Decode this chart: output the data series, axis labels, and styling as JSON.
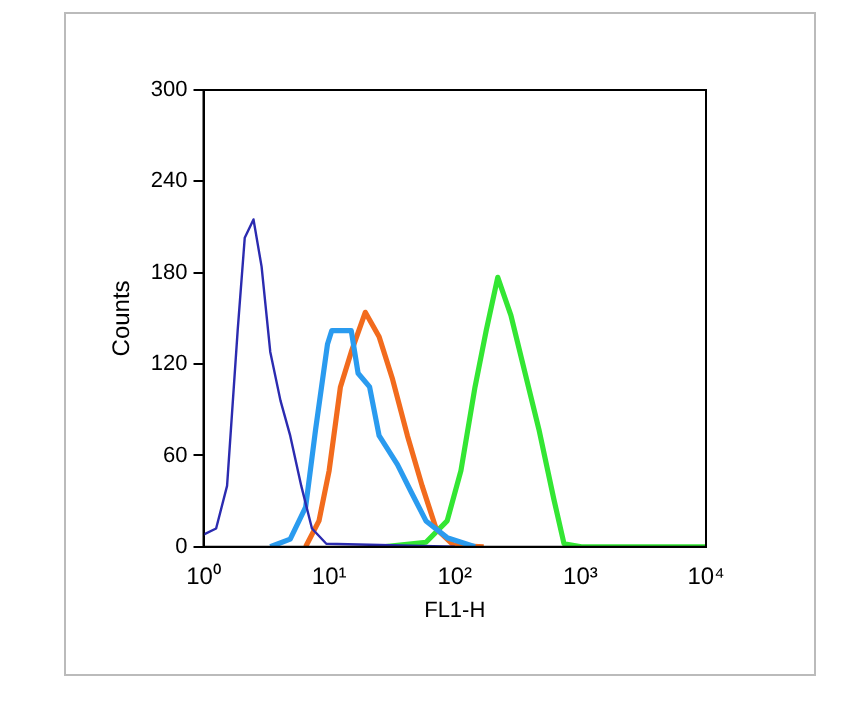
{
  "chart_data": {
    "type": "line",
    "xlabel": "FL1-H",
    "ylabel": "Counts",
    "log": "x",
    "grid": false,
    "legend": false,
    "marker": "none",
    "line_style": "solid",
    "xlim": [
      1,
      10000
    ],
    "xticks": [
      {
        "value": 1,
        "label": "10⁰"
      },
      {
        "value": 10,
        "label": "10¹"
      },
      {
        "value": 100,
        "label": "10²"
      },
      {
        "value": 1000,
        "label": "10³"
      },
      {
        "value": 10000,
        "label": "10⁴"
      }
    ],
    "ylim": [
      0,
      300
    ],
    "yticks": [
      0,
      60,
      120,
      180,
      240,
      300
    ],
    "series": [
      {
        "color": "#2b2bb0",
        "x": [
          1,
          1.26,
          1.54,
          1.87,
          2.13,
          2.5,
          2.9,
          3.4,
          4.1,
          4.9,
          6,
          7.3,
          9.5,
          100
        ],
        "values": [
          8,
          12,
          40,
          142,
          203,
          215,
          184,
          128,
          96,
          73,
          40,
          12,
          2,
          0
        ]
      },
      {
        "color": "#2a9bef",
        "x": [
          3.4,
          4.9,
          6.5,
          7.8,
          9.7,
          10.5,
          15,
          17,
          21,
          25,
          35,
          45,
          59,
          87,
          145
        ],
        "values": [
          0,
          5,
          26,
          77,
          133,
          142,
          142,
          114,
          105,
          73,
          54,
          36,
          17,
          6,
          0
        ]
      },
      {
        "color": "#f26b1d",
        "x": [
          6.5,
          8.3,
          10,
          12.3,
          15,
          19.4,
          25,
          32,
          42,
          55,
          71,
          98,
          170
        ],
        "values": [
          0,
          17,
          50,
          105,
          128,
          154,
          138,
          110,
          73,
          40,
          12,
          1,
          0
        ]
      },
      {
        "color": "#33e633",
        "x": [
          27,
          59,
          87,
          112,
          145,
          178,
          220,
          280,
          363,
          468,
          616,
          741,
          1020,
          10000
        ],
        "values": [
          0,
          3,
          17,
          50,
          105,
          142,
          177,
          152,
          114,
          77,
          31,
          2,
          0,
          0
        ]
      }
    ]
  }
}
